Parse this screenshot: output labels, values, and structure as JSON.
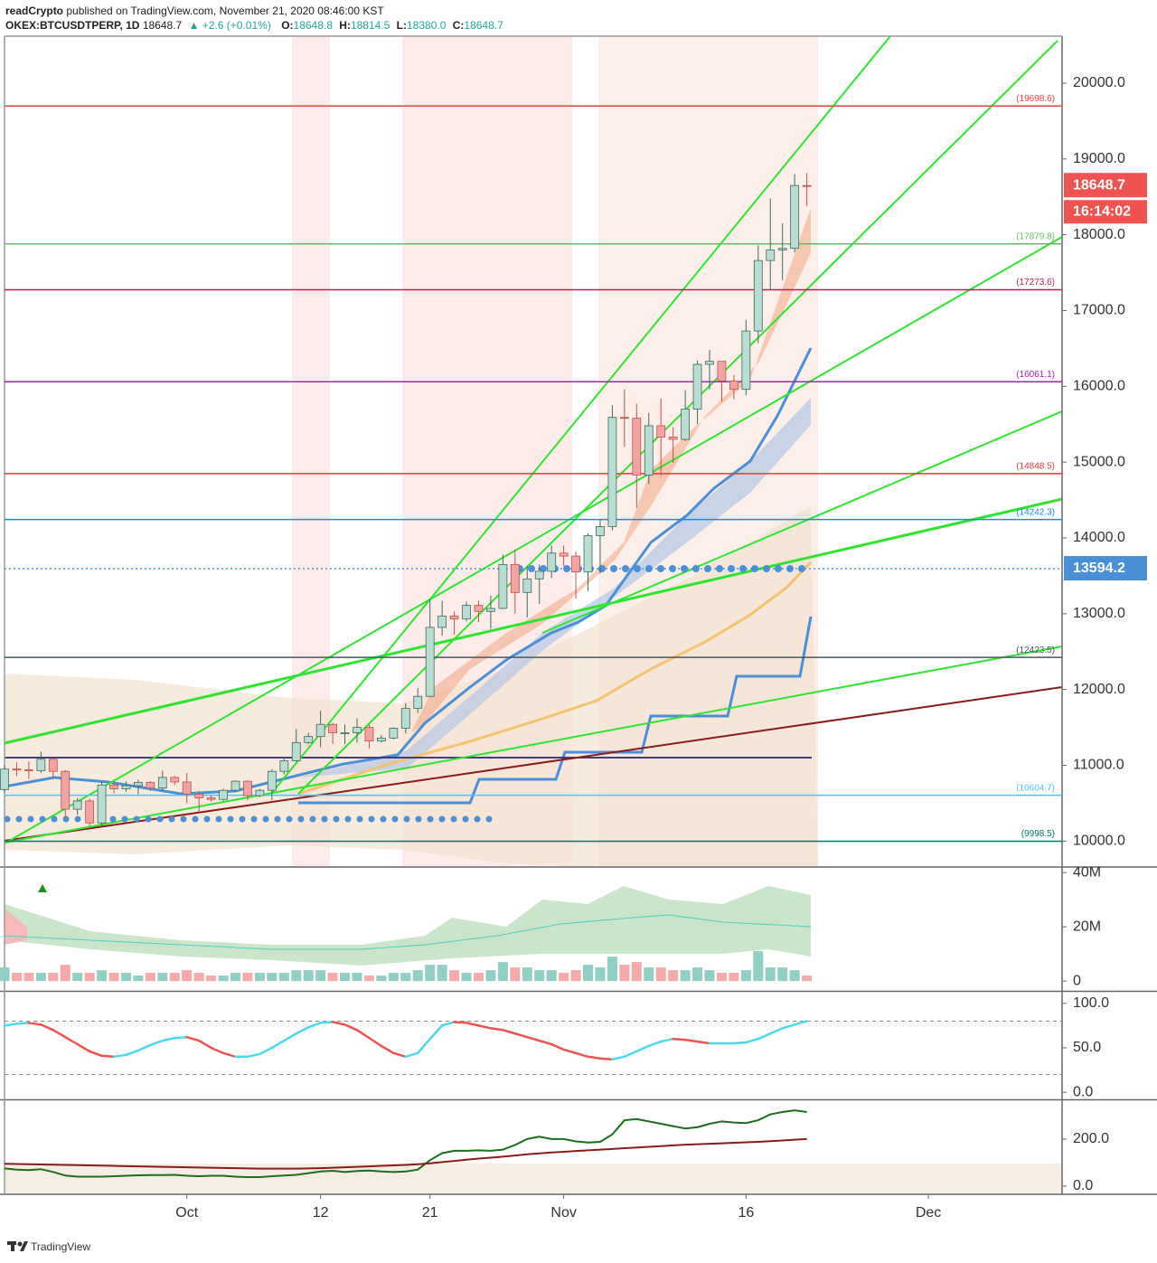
{
  "header": {
    "author": "readCrypto",
    "published": "published on TradingView.com, November 21, 2020 08:46:00 KST",
    "symbol": "OKEX:BTCUSDTPERP, 1D",
    "change": "+2.6 (+0.01%)",
    "o": "O:",
    "h": "H:",
    "l": "L:",
    "c": "C:",
    "low": "18380.0"
  },
  "footer": {
    "brand": "TradingView"
  },
  "chart_data": [
    {
      "type": "candlestick",
      "x": [
        "2020-09-16",
        "2020-09-17",
        "2020-09-18",
        "2020-09-19",
        "2020-09-20",
        "2020-09-21",
        "2020-09-22",
        "2020-09-23",
        "2020-09-24",
        "2020-09-25",
        "2020-09-26",
        "2020-09-27",
        "2020-09-28",
        "2020-09-29",
        "2020-09-30",
        "2020-10-01",
        "2020-10-02",
        "2020-10-03",
        "2020-10-04",
        "2020-10-05",
        "2020-10-06",
        "2020-10-07",
        "2020-10-08",
        "2020-10-09",
        "2020-10-10",
        "2020-10-11",
        "2020-10-12",
        "2020-10-13",
        "2020-10-14",
        "2020-10-15",
        "2020-10-16",
        "2020-10-17",
        "2020-10-18",
        "2020-10-19",
        "2020-10-20",
        "2020-10-21",
        "2020-10-22",
        "2020-10-23",
        "2020-10-24",
        "2020-10-25",
        "2020-10-26",
        "2020-10-27",
        "2020-10-28",
        "2020-10-29",
        "2020-10-30",
        "2020-10-31",
        "2020-11-01",
        "2020-11-02",
        "2020-11-03",
        "2020-11-04",
        "2020-11-05",
        "2020-11-06",
        "2020-11-07",
        "2020-11-08",
        "2020-11-09",
        "2020-11-10",
        "2020-11-11",
        "2020-11-12",
        "2020-11-13",
        "2020-11-14",
        "2020-11-15",
        "2020-11-16",
        "2020-11-17",
        "2020-11-18",
        "2020-11-19",
        "2020-11-20",
        "2020-11-21"
      ],
      "open": [
        10680,
        10950,
        10940,
        10930,
        11080,
        10920,
        10420,
        10530,
        10240,
        10740,
        10690,
        10730,
        10775,
        10700,
        10840,
        10780,
        10620,
        10570,
        10550,
        10670,
        10790,
        10600,
        10670,
        10920,
        11060,
        11300,
        11380,
        11540,
        11430,
        11430,
        11500,
        11320,
        11360,
        11490,
        11750,
        11910,
        12820,
        12970,
        12930,
        13110,
        13030,
        13070,
        13650,
        13280,
        13460,
        13560,
        13800,
        13760,
        13550,
        14030,
        14150,
        15590,
        15580,
        14830,
        15480,
        15330,
        15300,
        15700,
        16290,
        16330,
        16070,
        15960,
        16730,
        17660,
        17800,
        17820,
        18648.8
      ],
      "high": [
        11000,
        11040,
        11050,
        11180,
        11090,
        10940,
        10570,
        10560,
        10790,
        10790,
        10790,
        10810,
        10790,
        10930,
        10860,
        10900,
        10660,
        10600,
        10690,
        10800,
        10800,
        10690,
        10950,
        11110,
        11480,
        11430,
        11720,
        11560,
        11540,
        11620,
        11540,
        11400,
        11500,
        11820,
        12020,
        13200,
        13170,
        13030,
        13160,
        13170,
        13240,
        13780,
        13850,
        13630,
        13650,
        13900,
        13900,
        13820,
        14060,
        14240,
        15750,
        15960,
        15770,
        15650,
        15840,
        15460,
        15950,
        16340,
        16480,
        16330,
        16150,
        16880,
        17860,
        18480,
        18150,
        18800,
        18814.5
      ],
      "low": [
        10640,
        10860,
        10820,
        10900,
        10820,
        10300,
        10350,
        10200,
        10190,
        10630,
        10650,
        10620,
        10660,
        10660,
        10740,
        10500,
        10380,
        10520,
        10530,
        10650,
        10540,
        10580,
        10540,
        10880,
        11050,
        11280,
        11240,
        11280,
        11280,
        11300,
        11220,
        11300,
        11340,
        11420,
        11690,
        11900,
        12710,
        12720,
        12900,
        12890,
        12800,
        13060,
        13000,
        12950,
        13130,
        13470,
        13630,
        13200,
        13300,
        13530,
        14100,
        15200,
        14400,
        14710,
        14820,
        14990,
        15280,
        15500,
        15960,
        15800,
        15830,
        15880,
        16570,
        17270,
        17400,
        17770,
        18380
      ],
      "close": [
        10950,
        10940,
        10930,
        11080,
        10920,
        10420,
        10530,
        10240,
        10740,
        10690,
        10730,
        10775,
        10700,
        10840,
        10780,
        10620,
        10570,
        10550,
        10670,
        10790,
        10600,
        10670,
        10920,
        11060,
        11300,
        11380,
        11540,
        11430,
        11430,
        11500,
        11320,
        11360,
        11490,
        11750,
        11910,
        12820,
        12970,
        12930,
        13110,
        13030,
        13070,
        13650,
        13280,
        13460,
        13560,
        13800,
        13760,
        13550,
        14030,
        14150,
        15590,
        15580,
        14830,
        15480,
        15330,
        15300,
        15700,
        16290,
        16330,
        16070,
        15960,
        16730,
        17660,
        17800,
        17820,
        18650,
        18648.7
      ],
      "colors": {
        "up": "#b9dcd3",
        "down": "#f4a3a3",
        "up_border": "#3e6b5f",
        "down_border": "#c0504d",
        "last": "#ef5350",
        "marker": "#4a90d9"
      },
      "xlim": [
        "2020-09-16",
        "2020-12-12"
      ],
      "xticks": [
        {
          "value": "2020-10-01",
          "label": "Oct"
        },
        {
          "value": "2020-10-12",
          "label": "12"
        },
        {
          "value": "2020-10-21",
          "label": "21"
        },
        {
          "value": "2020-11-01",
          "label": "Nov"
        },
        {
          "value": "2020-11-16",
          "label": "16"
        },
        {
          "value": "2020-12-01",
          "label": "Dec"
        }
      ],
      "ylim": [
        9670,
        20620
      ],
      "yticks": [
        {
          "value": 10000,
          "label": "10000.0"
        },
        {
          "value": 11000,
          "label": "11000.0"
        },
        {
          "value": 12000,
          "label": "12000.0"
        },
        {
          "value": 13000,
          "label": "13000.0"
        },
        {
          "value": 14000,
          "label": "14000.0"
        },
        {
          "value": 15000,
          "label": "15000.0"
        },
        {
          "value": 16000,
          "label": "16000.0"
        },
        {
          "value": 17000,
          "label": "17000.0"
        },
        {
          "value": 18000,
          "label": "18000.0"
        },
        {
          "value": 19000,
          "label": "19000.0"
        },
        {
          "value": 20000,
          "label": "20000.0"
        }
      ],
      "levels": [
        {
          "value": 19698.6,
          "label": "(19698.6)",
          "color": "#f44336"
        },
        {
          "value": 17879.8,
          "label": "(17879.8)",
          "color": "#66bb6a"
        },
        {
          "value": 17273.6,
          "label": "(17273.6)",
          "color": "#c2185b"
        },
        {
          "value": 16061.1,
          "label": "(16061.1)",
          "color": "#9c27b0"
        },
        {
          "value": 14848.5,
          "label": "(14848.5)",
          "color": "#e53935"
        },
        {
          "value": 14242.3,
          "label": "(14242.3)",
          "color": "#1e88e5"
        },
        {
          "value": 12423.5,
          "label": "(12423.5)",
          "color": "#455a64"
        },
        {
          "value": 10604.7,
          "label": "(10604.7)",
          "color": "#4fc3f7"
        },
        {
          "value": 9998.5,
          "label": "(9998.5)",
          "color": "#00796b"
        }
      ],
      "marker_line": 13594.2,
      "countdown": "16:14:02"
    },
    {
      "type": "bar",
      "values": [
        5000000,
        3000000,
        3000000,
        3000000,
        3000000,
        6000000,
        3000000,
        3000000,
        4000000,
        3000000,
        3000000,
        2000000,
        3000000,
        3000000,
        3000000,
        4000000,
        3000000,
        2000000,
        2000000,
        3000000,
        3000000,
        3000000,
        3000000,
        3000000,
        4000000,
        4000000,
        4000000,
        3000000,
        3000000,
        3000000,
        2000000,
        2000000,
        3000000,
        3000000,
        4000000,
        6000000,
        6000000,
        4000000,
        3000000,
        3000000,
        4000000,
        7000000,
        5000000,
        5000000,
        4000000,
        4000000,
        3000000,
        4000000,
        6000000,
        5000000,
        9000000,
        6000000,
        7000000,
        5000000,
        5000000,
        4000000,
        4000000,
        5000000,
        4000000,
        3000000,
        3000000,
        4000000,
        11000000,
        5000000,
        5000000,
        4000000,
        2000000
      ],
      "colors": {
        "up": "#8fcfc4",
        "down": "#f5a9a9"
      },
      "ylim": [
        -3300000,
        41700000
      ],
      "yticks": [
        0,
        {
          "value": 20000000,
          "label": "20M"
        },
        {
          "value": 40000000,
          "label": "40M"
        }
      ]
    },
    {
      "type": "line",
      "values": [
        75,
        77,
        78,
        76,
        70,
        62,
        54,
        46,
        41,
        40,
        42,
        47,
        53,
        58,
        61,
        62,
        58,
        50,
        44,
        40,
        40,
        43,
        50,
        58,
        66,
        73,
        78,
        79,
        76,
        70,
        61,
        52,
        44,
        40,
        44,
        60,
        75,
        79,
        78,
        75,
        72,
        70,
        66,
        62,
        58,
        54,
        48,
        44,
        40,
        38,
        37,
        40,
        46,
        52,
        57,
        60,
        59,
        57,
        55,
        55,
        55,
        56,
        60,
        66,
        72,
        76,
        80
      ],
      "colors": {
        "rising": "#4dd9ec",
        "falling": "#ef5350",
        "levels": "#888888"
      },
      "levels": [
        80,
        20
      ],
      "ylim": [
        -7,
        112
      ],
      "yticks": [
        {
          "value": 0,
          "label": "0.0"
        },
        {
          "value": 50,
          "label": "50.0"
        },
        {
          "value": 100,
          "label": "100.0"
        }
      ]
    },
    {
      "type": "line",
      "series": [
        {
          "color": "#1b6e1b",
          "values": [
            75,
            70,
            68,
            72,
            60,
            45,
            40,
            40,
            40,
            42,
            44,
            46,
            47,
            47,
            48,
            44,
            42,
            44,
            44,
            40,
            38,
            38,
            42,
            45,
            48,
            55,
            62,
            65,
            60,
            64,
            66,
            62,
            60,
            62,
            70,
            110,
            140,
            150,
            150,
            152,
            150,
            155,
            175,
            200,
            210,
            200,
            200,
            190,
            185,
            188,
            220,
            280,
            285,
            275,
            265,
            255,
            245,
            250,
            265,
            275,
            270,
            268,
            280,
            305,
            315,
            322,
            315
          ]
        },
        {
          "color": "#8b1a1a",
          "values": [
            95,
            94,
            93,
            92,
            91,
            90,
            89,
            88,
            87,
            86,
            85,
            84,
            83,
            82,
            81,
            80,
            79,
            78,
            77,
            76,
            75,
            74,
            74,
            74,
            74,
            75,
            76,
            78,
            80,
            82,
            84,
            86,
            88,
            90,
            93,
            97,
            102,
            107,
            112,
            117,
            121,
            125,
            130,
            135,
            139,
            143,
            146,
            149,
            152,
            155,
            158,
            161,
            164,
            167,
            170,
            173,
            176,
            178,
            180,
            182,
            184,
            186,
            188,
            191,
            194,
            197,
            200
          ]
        }
      ],
      "ylim": [
        -31,
        361
      ],
      "yticks": [
        {
          "value": 0,
          "label": "0.0"
        },
        {
          "value": 200,
          "label": "200.0"
        }
      ]
    }
  ]
}
